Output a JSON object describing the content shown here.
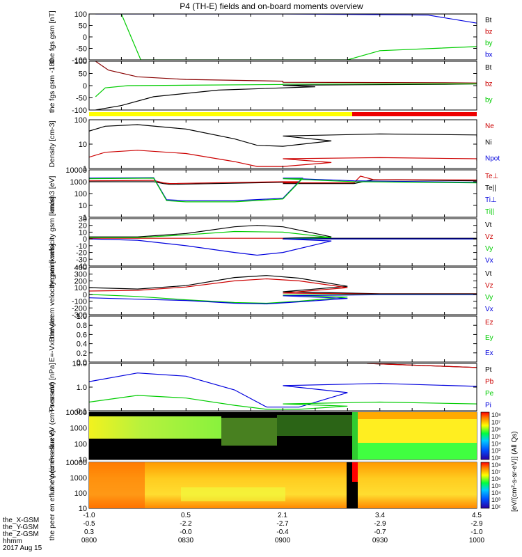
{
  "title": "P4 (TH-E) fields and on-board moments overview",
  "x_time_labels": [
    "0800",
    "0830",
    "0900",
    "0930",
    "1000"
  ],
  "footer": {
    "row_labels": [
      "the_X-GSM",
      "the_Y-GSM",
      "the_Z-GSM",
      "hhmm",
      "2017 Aug 15"
    ],
    "x_values": [
      "-1.0",
      "0.5",
      "2.1",
      "3.4",
      "4.5"
    ],
    "y_values": [
      "-0.5",
      "-2.2",
      "-2.7",
      "-2.9",
      "-2.9"
    ],
    "z_values": [
      "0.3",
      "-0.0",
      "-0.4",
      "-0.7",
      "-1.0"
    ]
  },
  "colorbar_label": "[eV/(cm²-s-sr-eV)] (All Qs)",
  "colorbar_ticks": [
    "10⁸",
    "10⁷",
    "10⁶",
    "10⁵",
    "10⁴",
    "10³",
    "10²"
  ],
  "colors": {
    "black": "#000000",
    "red": "#cc0000",
    "green": "#00cc00",
    "blue": "#0000dd",
    "yellow": "#ffff00"
  },
  "chart_data": [
    {
      "type": "line",
      "ylabel": "the fgs gsm [nT]",
      "ylim": [
        -100,
        100
      ],
      "yticks": [
        "100",
        "50",
        "0",
        "-50",
        "-100"
      ],
      "legend": [
        "Bt",
        "bz",
        "by",
        "bx"
      ],
      "series": [
        {
          "name": "Bt",
          "color": "#000000",
          "x": [
            800,
            1000
          ],
          "y": [
            100,
            100
          ]
        },
        {
          "name": "by",
          "color": "#00cc00",
          "x": [
            810,
            813,
            816,
            840,
            880,
            930,
            1000
          ],
          "y": [
            100,
            0,
            -100,
            -100,
            -100,
            -60,
            -42
          ]
        },
        {
          "name": "bx",
          "color": "#0000dd",
          "x": [
            802,
            812,
            815,
            900,
            945,
            1000
          ],
          "y": [
            100,
            100,
            100,
            100,
            95,
            60
          ]
        }
      ]
    },
    {
      "type": "line",
      "ylabel": "the fgs gsm -180",
      "ylim": [
        -120,
        100
      ],
      "yticks": [
        "100",
        "50",
        "0",
        "-50",
        "-100"
      ],
      "legend": [
        "Bt",
        "bz",
        "by"
      ],
      "series": [
        {
          "name": "Bt",
          "color": "#000000",
          "x": [
            802,
            810,
            820,
            840,
            870,
            900,
            950,
            1000
          ],
          "y": [
            -120,
            -100,
            -60,
            -30,
            -15,
            -8,
            -4,
            -2
          ]
        },
        {
          "name": "bz",
          "color": "#880000",
          "x": [
            802,
            806,
            815,
            830,
            860,
            900,
            950,
            1000
          ],
          "y": [
            100,
            60,
            30,
            18,
            10,
            5,
            3,
            2
          ]
        },
        {
          "name": "by",
          "color": "#00cc00",
          "x": [
            802,
            805,
            812,
            830,
            860,
            900,
            950,
            1000
          ],
          "y": [
            -60,
            -20,
            -10,
            -8,
            -5,
            -3,
            -2,
            -2
          ]
        }
      ]
    },
    {
      "type": "line",
      "ylabel": "Density [cm-3]",
      "ylim": [
        0.3,
        300
      ],
      "yscale": "log",
      "yticks": [
        "100",
        "10",
        "1"
      ],
      "legend": [
        "Ne",
        "Ni",
        "Npot"
      ],
      "series": [
        {
          "name": "Ni",
          "color": "#000000",
          "x": [
            800,
            805,
            815,
            830,
            845,
            852,
            860,
            875,
            900,
            930,
            960,
            1000
          ],
          "y": [
            60,
            120,
            150,
            80,
            20,
            8,
            7,
            15,
            30,
            40,
            35,
            25
          ]
        },
        {
          "name": "Ne",
          "color": "#cc0000",
          "x": [
            800,
            805,
            815,
            830,
            845,
            852,
            860,
            875,
            900,
            930,
            960,
            1000
          ],
          "y": [
            1.5,
            3,
            4,
            2.5,
            0.8,
            0.4,
            0.4,
            0.7,
            1.2,
            1.4,
            1.2,
            0.9
          ]
        }
      ]
    },
    {
      "type": "line",
      "ylabel": "mom3 [eV]",
      "ylim": [
        1,
        10000
      ],
      "yscale": "log",
      "yticks": [
        "10000",
        "1000",
        "100",
        "10",
        "1"
      ],
      "legend": [
        "Te⊥",
        "Te||",
        "Ti⊥",
        "Ti||"
      ],
      "series": [
        {
          "name": "Te||",
          "color": "#000000",
          "x": [
            800,
            820,
            823,
            825,
            860,
            865,
            900,
            922,
            928,
            1000
          ],
          "y": [
            1000,
            1000,
            700,
            600,
            900,
            900,
            700,
            700,
            1500,
            1200
          ]
        },
        {
          "name": "Te⊥",
          "color": "#cc0000",
          "x": [
            800,
            820,
            823,
            825,
            860,
            865,
            900,
            922,
            924,
            928,
            1000
          ],
          "y": [
            1200,
            1300,
            800,
            700,
            1000,
            1000,
            800,
            800,
            3000,
            1500,
            1400
          ]
        },
        {
          "name": "Ti⊥",
          "color": "#0000dd",
          "x": [
            800,
            820,
            824,
            830,
            845,
            860,
            866,
            900,
            922,
            1000
          ],
          "y": [
            2000,
            2200,
            30,
            25,
            25,
            40,
            2000,
            2000,
            1200,
            900
          ]
        },
        {
          "name": "Ti||",
          "color": "#00cc00",
          "x": [
            800,
            820,
            824,
            830,
            845,
            860,
            866,
            900,
            922,
            1000
          ],
          "y": [
            1800,
            2000,
            25,
            20,
            20,
            35,
            1800,
            1800,
            1000,
            800
          ]
        }
      ]
    },
    {
      "type": "line",
      "ylabel": "the peim velocity gsm [km/s]",
      "ylim": [
        -40,
        30
      ],
      "yticks": [
        "30",
        "20",
        "10",
        "0",
        "-10",
        "-20",
        "-30",
        "-40"
      ],
      "legend": [
        "Vt",
        "Vz",
        "Vy",
        "Vx"
      ],
      "series": [
        {
          "name": "Vt",
          "color": "#000000",
          "x": [
            800,
            815,
            830,
            845,
            852,
            860,
            875,
            900,
            1000
          ],
          "y": [
            3,
            3,
            8,
            18,
            20,
            18,
            3,
            1,
            1
          ]
        },
        {
          "name": "Vz",
          "color": "#cc0000",
          "x": [
            800,
            830,
            860,
            900,
            1000
          ],
          "y": [
            1,
            1,
            1,
            0,
            0
          ]
        },
        {
          "name": "Vy",
          "color": "#00cc00",
          "x": [
            800,
            815,
            830,
            845,
            860,
            875,
            900,
            1000
          ],
          "y": [
            2,
            2,
            6,
            11,
            10,
            2,
            0,
            0
          ]
        },
        {
          "name": "Vx",
          "color": "#0000dd",
          "x": [
            800,
            815,
            830,
            845,
            852,
            860,
            875,
            900,
            1000
          ],
          "y": [
            0,
            -2,
            -10,
            -20,
            -24,
            -20,
            -3,
            0,
            0
          ]
        }
      ]
    },
    {
      "type": "line",
      "ylabel": "the peem velocity gsm [km/s]",
      "ylim": [
        -300,
        400
      ],
      "yticks": [
        "400",
        "300",
        "200",
        "100",
        "0",
        "-100",
        "-200",
        "-300"
      ],
      "legend": [
        "Vt",
        "Vz",
        "Vy",
        "Vx"
      ],
      "series": [
        {
          "name": "Vt",
          "color": "#000000",
          "x": [
            800,
            815,
            830,
            845,
            855,
            865,
            880,
            900,
            930,
            1000
          ],
          "y": [
            100,
            80,
            130,
            250,
            280,
            240,
            120,
            40,
            10,
            10
          ]
        },
        {
          "name": "Vz",
          "color": "#cc0000",
          "x": [
            800,
            815,
            830,
            845,
            855,
            865,
            880,
            900,
            930,
            1000
          ],
          "y": [
            50,
            60,
            110,
            200,
            230,
            200,
            100,
            20,
            5,
            5
          ]
        },
        {
          "name": "Vy",
          "color": "#00cc00",
          "x": [
            800,
            815,
            830,
            845,
            855,
            865,
            880,
            900,
            930,
            1000
          ],
          "y": [
            0,
            -30,
            -80,
            -120,
            -130,
            -100,
            -40,
            -10,
            0,
            0
          ]
        },
        {
          "name": "Vx",
          "color": "#0000dd",
          "x": [
            800,
            815,
            830,
            845,
            855,
            865,
            880,
            900,
            930,
            1000
          ],
          "y": [
            -50,
            -70,
            -90,
            -130,
            -140,
            -110,
            -60,
            -20,
            -5,
            -5
          ]
        }
      ]
    },
    {
      "type": "line",
      "ylabel": "E=-VxB mV/m",
      "ylim": [
        0,
        1
      ],
      "yticks": [
        "1.0",
        "0.8",
        "0.6",
        "0.4",
        "0.2",
        "0.0"
      ],
      "legend": [
        "Ez",
        "Ey",
        "Ex"
      ],
      "series": []
    },
    {
      "type": "line",
      "ylabel": "Pressure [nPa]",
      "ylim": [
        0.05,
        20
      ],
      "yscale": "log",
      "yticks": [
        "10.0",
        "1.0",
        "0.1"
      ],
      "legend": [
        "Pt",
        "Pb",
        "Pe",
        "Pi"
      ],
      "series": [
        {
          "name": "Pt",
          "color": "#000000",
          "x": [
            926,
            1000
          ],
          "y": [
            20,
            12
          ]
        },
        {
          "name": "Pb",
          "color": "#cc0000",
          "x": [
            926,
            1000
          ],
          "y": [
            20,
            12
          ]
        },
        {
          "name": "Pi",
          "color": "#0000dd",
          "x": [
            800,
            815,
            830,
            845,
            855,
            865,
            880,
            900,
            930,
            1000
          ],
          "y": [
            2,
            6,
            4,
            0.7,
            0.08,
            0.08,
            0.5,
            1.2,
            1.6,
            1.1
          ]
        },
        {
          "name": "Pe",
          "color": "#00cc00",
          "x": [
            800,
            815,
            830,
            845,
            855,
            865,
            880,
            900,
            930,
            1000
          ],
          "y": [
            0.15,
            0.35,
            0.25,
            0.1,
            0.06,
            0.06,
            0.09,
            0.12,
            0.15,
            0.12
          ]
        }
      ]
    },
    {
      "type": "heatmap",
      "ylabel": "the peir en eflux eV (cm²-s-sr-eV)",
      "yscale": "log",
      "yticks": [
        "10000",
        "1000",
        "100",
        "10"
      ],
      "ylim": [
        7,
        25000
      ]
    },
    {
      "type": "heatmap",
      "ylabel": "the peer en eflux eV (cm²-s-sr-eV)",
      "yscale": "log",
      "yticks": [
        "10000",
        "1000",
        "100",
        "10"
      ],
      "ylim": [
        7,
        25000
      ]
    }
  ]
}
